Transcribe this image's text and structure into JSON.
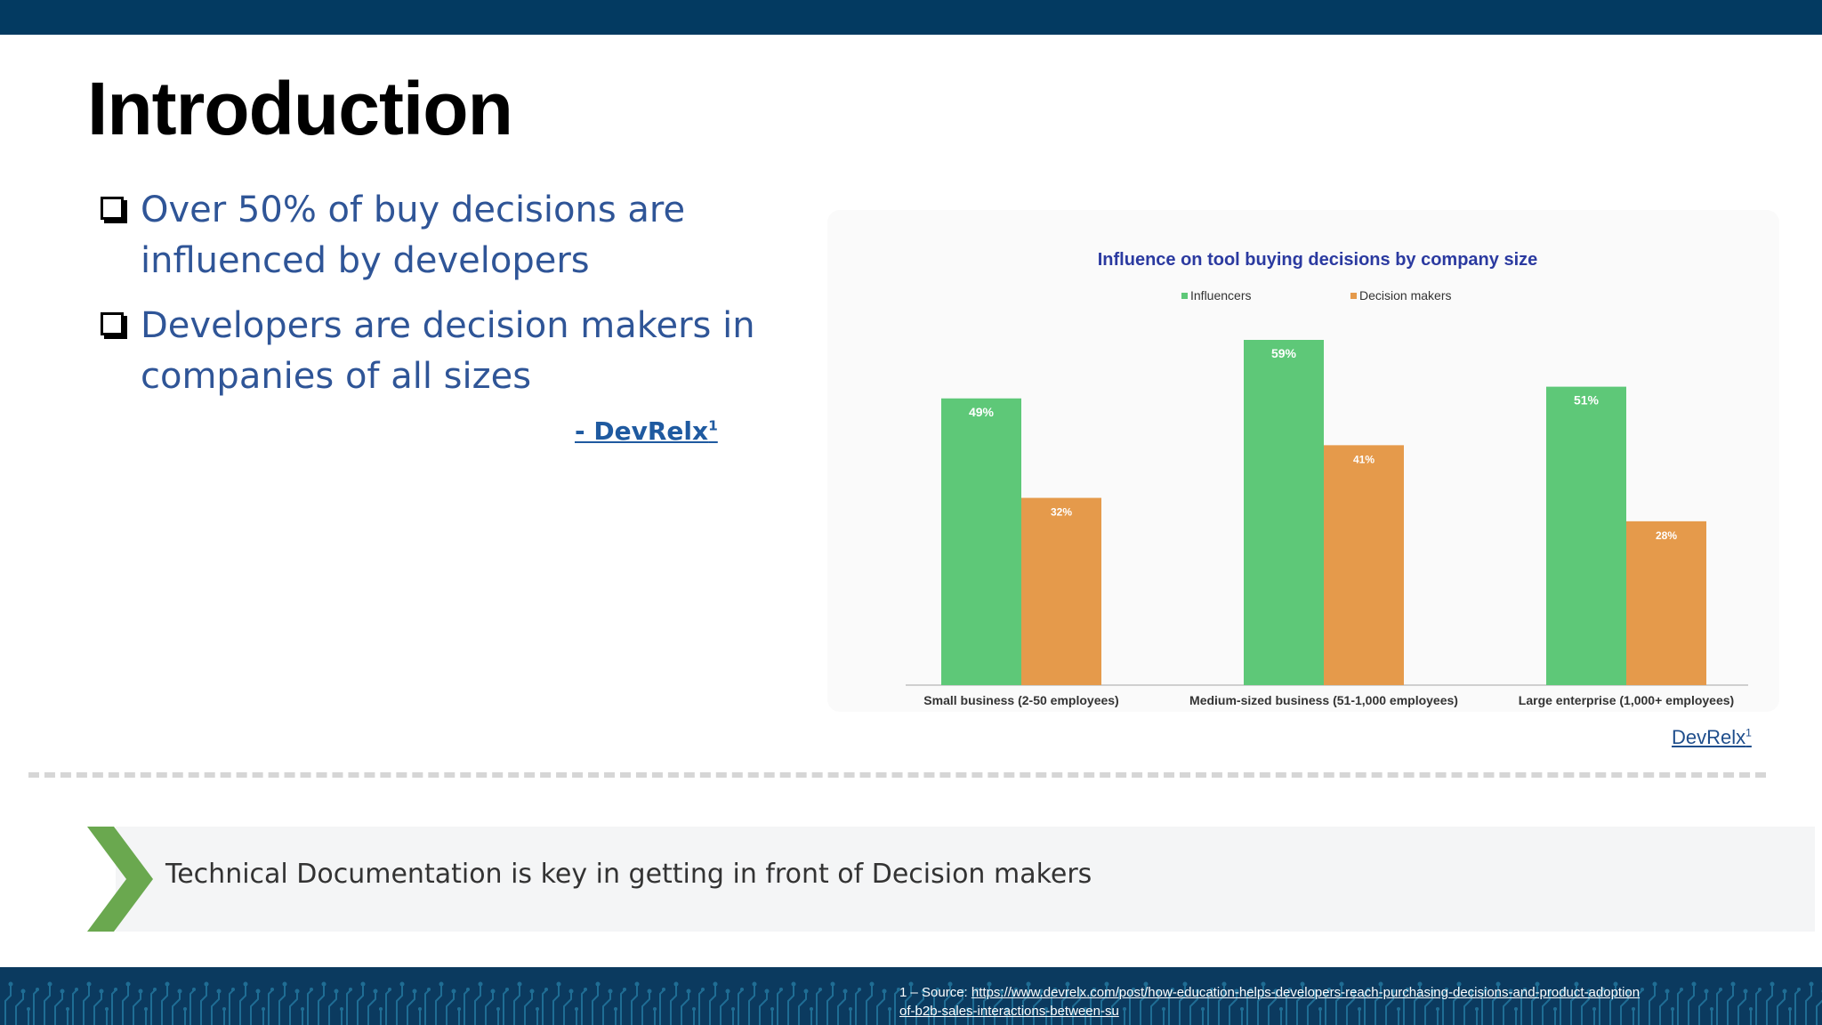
{
  "title": "Introduction",
  "bullets": [
    {
      "line1": "Over 50% of buy decisions are",
      "line2": "influenced by developers"
    },
    {
      "line1": "Developers are decision makers in",
      "line2": "companies of all sizes"
    }
  ],
  "quote_link": "- DevRelx",
  "footnote_mark": "1",
  "chart_credit": "DevRelx",
  "chart_data": {
    "type": "bar",
    "title": "Influence on tool buying decisions by company size",
    "categories": [
      "Small business (2-50 employees)",
      "Medium-sized business (51-1,000 employees)",
      "Large enterprise (1,000+ employees)"
    ],
    "series": [
      {
        "name": "Influencers",
        "values": [
          49,
          59,
          51
        ],
        "labels": [
          "49%",
          "59%",
          "51%"
        ],
        "color": "#5ec878"
      },
      {
        "name": "Decision makers",
        "values": [
          32,
          41,
          28
        ],
        "labels": [
          "32%",
          "41%",
          "28%"
        ],
        "color": "#e59a4b"
      }
    ],
    "ylim": [
      0,
      59
    ],
    "xlabel": "",
    "ylabel": "",
    "legend": "top-center",
    "grid": false
  },
  "banner": {
    "text": "Technical Documentation is key in getting in front of Decision makers"
  },
  "footer": {
    "prefix": "1 – Source: ",
    "link_line1": "https://www.devrelx.com/post/how-education-helps-developers-reach-purchasing-decisions-and-product-adoption",
    "link_line2": "of-b2b-sales-interactions-between-su"
  },
  "colors": {
    "top_bar": "#033a61",
    "bullet_text": "#2f5597",
    "chevron": "#6aa84f",
    "chart_title": "#2b3aa0"
  }
}
